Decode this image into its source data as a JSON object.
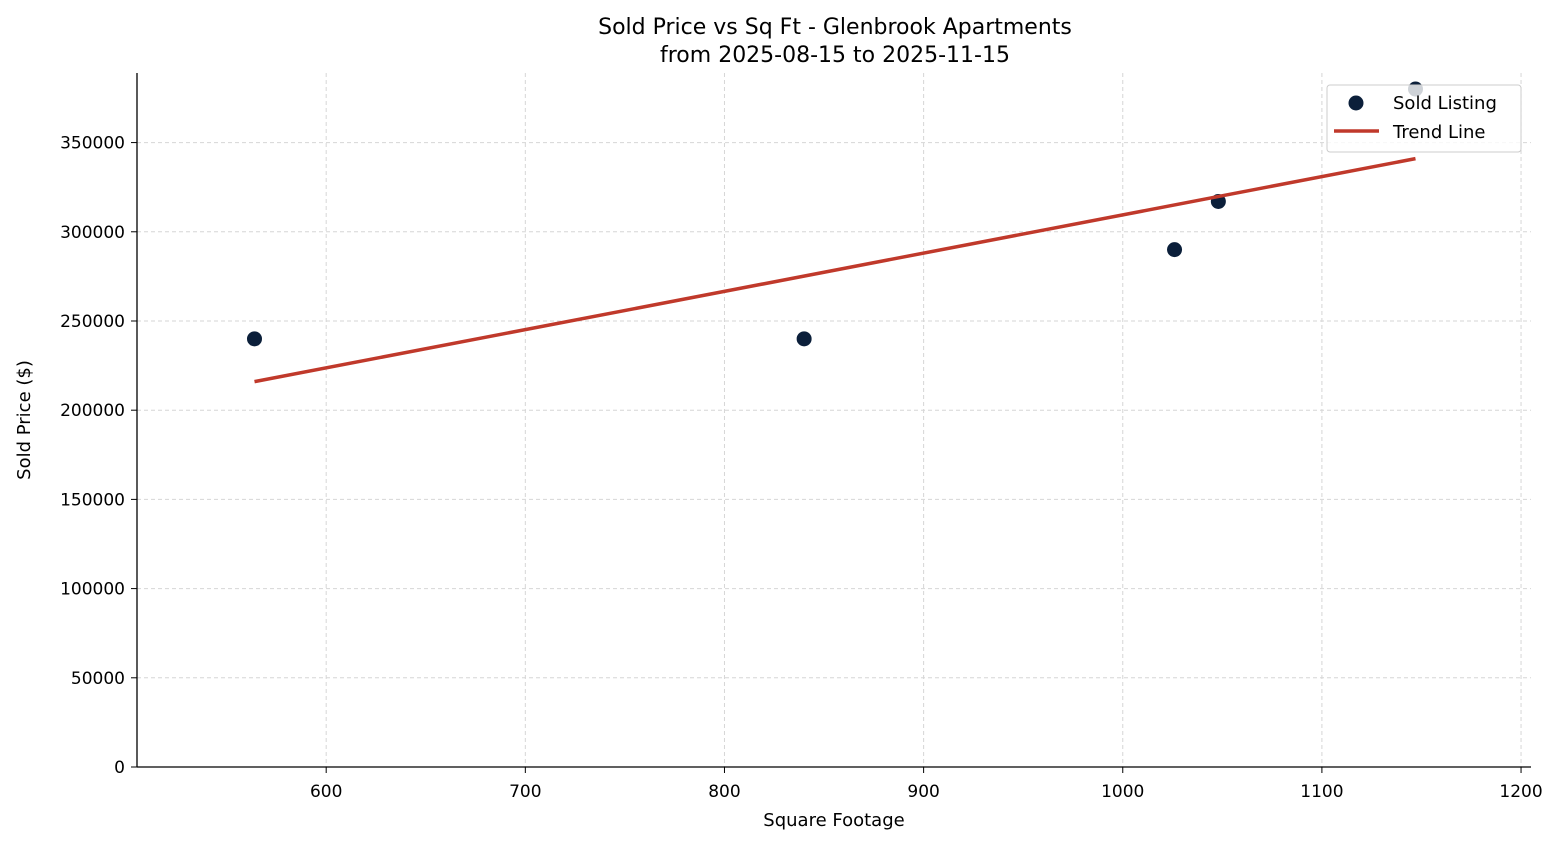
{
  "chart_data": {
    "type": "scatter",
    "title": "Sold Price vs Sq Ft - Glenbrook Apartments",
    "subtitle": "from 2025-08-15 to 2025-11-15",
    "xlabel": "Square Footage",
    "ylabel": "Sold Price ($)",
    "xlim": [
      505,
      1205
    ],
    "ylim": [
      0,
      389000
    ],
    "xticks": [
      600,
      700,
      800,
      900,
      1000,
      1100,
      1200
    ],
    "yticks": [
      0,
      50000,
      100000,
      150000,
      200000,
      250000,
      300000,
      350000
    ],
    "grid": true,
    "legend_position": "top-right",
    "series": [
      {
        "name": "Sold Listing",
        "type": "scatter",
        "color": "#0b1f3a",
        "x": [
          564,
          840,
          1026,
          1048,
          1147
        ],
        "y": [
          240000,
          240000,
          290000,
          317000,
          380000
        ]
      },
      {
        "name": "Trend Line",
        "type": "line",
        "color": "#c0392b",
        "x": [
          564,
          1147
        ],
        "y": [
          216000,
          341000
        ]
      }
    ]
  }
}
